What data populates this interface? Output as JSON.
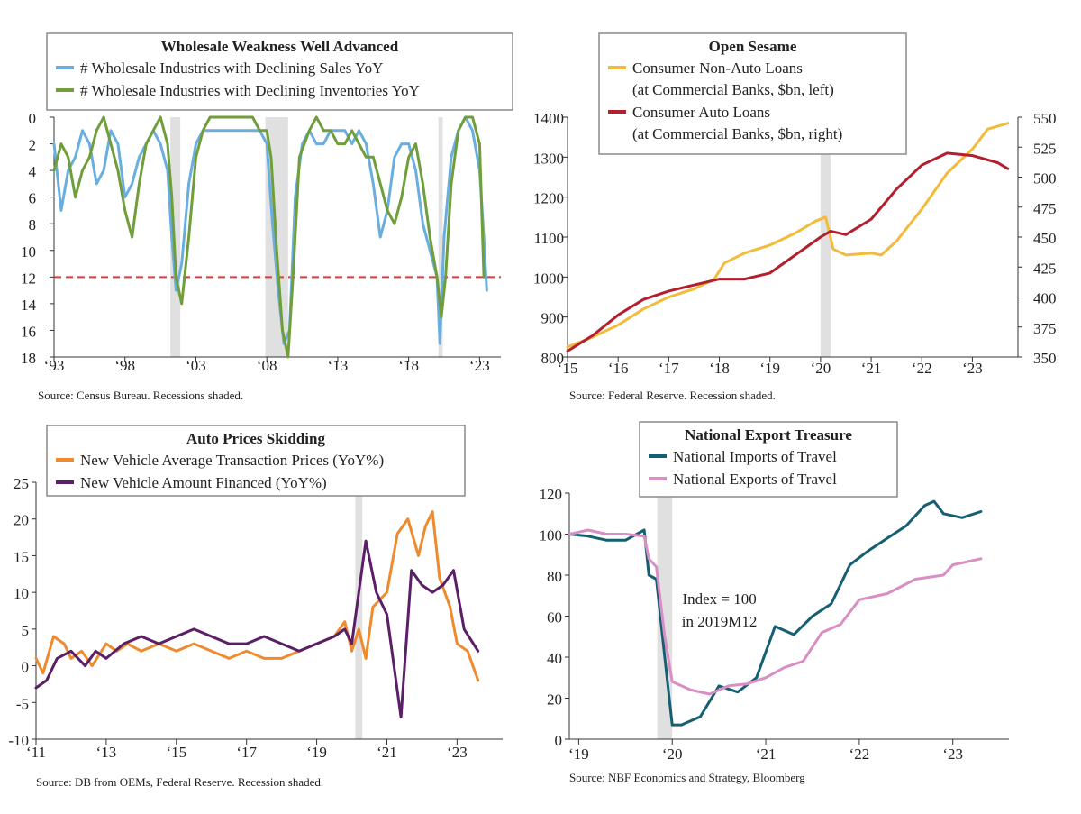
{
  "chart_data": [
    {
      "type": "line",
      "title": "Wholesale Weakness Well Advanced",
      "source": "Source: Census Bureau. Recessions shaded.",
      "y_inverted": true,
      "ylim": [
        0,
        18
      ],
      "y_ticks": [
        "0",
        "2",
        "4",
        "6",
        "8",
        "10",
        "12",
        "14",
        "16",
        "18"
      ],
      "x_range": [
        1993,
        2024.5
      ],
      "x_ticks": [
        {
          "v": 1993,
          "label": "‘93"
        },
        {
          "v": 1998,
          "label": "‘98"
        },
        {
          "v": 2003,
          "label": "‘03"
        },
        {
          "v": 2008,
          "label": "‘08"
        },
        {
          "v": 2013,
          "label": "‘13"
        },
        {
          "v": 2018,
          "label": "‘18"
        },
        {
          "v": 2023,
          "label": "‘23"
        }
      ],
      "recessions": [
        [
          2001.2,
          2001.9
        ],
        [
          2007.9,
          2009.5
        ],
        [
          2020.1,
          2020.4
        ]
      ],
      "reference_line": {
        "value": 12,
        "color": "#e23a3a"
      },
      "series": [
        {
          "name": "# Wholesale Industries with Declining Sales YoY",
          "color": "#6aaedf",
          "axis": "left",
          "x": [
            1993,
            1993.5,
            1994,
            1994.5,
            1995,
            1995.5,
            1996,
            1996.5,
            1997,
            1997.5,
            1998,
            1998.5,
            1999,
            1999.5,
            2000,
            2000.5,
            2001,
            2001.3,
            2001.6,
            2002,
            2002.5,
            2003,
            2003.5,
            2004,
            2005,
            2006,
            2007,
            2007.5,
            2008,
            2008.4,
            2008.8,
            2009.2,
            2009.6,
            2010,
            2010.5,
            2011,
            2011.5,
            2012,
            2012.5,
            2013,
            2013.5,
            2014,
            2014.5,
            2015,
            2015.5,
            2016,
            2016.5,
            2017,
            2017.5,
            2018,
            2018.5,
            2019,
            2019.5,
            2020,
            2020.2,
            2020.5,
            2021,
            2021.5,
            2022,
            2022.5,
            2023,
            2023.3,
            2023.5
          ],
          "values": [
            2,
            7,
            4,
            3,
            1,
            2,
            5,
            4,
            1,
            2,
            6,
            5,
            3,
            2,
            1,
            2,
            4,
            9,
            13,
            11,
            5,
            2,
            1,
            1,
            1,
            1,
            1,
            1,
            2,
            8,
            13,
            17,
            16,
            6,
            2,
            1,
            2,
            2,
            1,
            1,
            1,
            2,
            1,
            2,
            5,
            9,
            7,
            3,
            2,
            2,
            4,
            8,
            10,
            12,
            17,
            9,
            3,
            1,
            0,
            1,
            4,
            9,
            13
          ]
        },
        {
          "name": "# Wholesale Industries with Declining Inventories YoY",
          "color": "#6f9e3a",
          "axis": "left",
          "x": [
            1993,
            1993.5,
            1994,
            1994.5,
            1995,
            1995.5,
            1996,
            1996.5,
            1997,
            1997.5,
            1998,
            1998.5,
            1999,
            1999.5,
            2000,
            2000.5,
            2001,
            2001.3,
            2001.6,
            2002,
            2002.5,
            2003,
            2003.5,
            2004,
            2005,
            2006,
            2007,
            2007.5,
            2008,
            2008.3,
            2008.7,
            2009.1,
            2009.5,
            2009.9,
            2010.3,
            2011,
            2011.5,
            2012,
            2012.5,
            2013,
            2013.5,
            2014,
            2014.5,
            2015,
            2015.5,
            2016,
            2016.5,
            2017,
            2017.5,
            2018,
            2018.5,
            2019,
            2019.5,
            2020,
            2020.3,
            2020.6,
            2021,
            2021.5,
            2022,
            2022.5,
            2023,
            2023.3
          ],
          "values": [
            4,
            2,
            3,
            6,
            4,
            3,
            1,
            0,
            2,
            4,
            7,
            9,
            5,
            2,
            1,
            0,
            2,
            6,
            12,
            14,
            9,
            3,
            1,
            0,
            0,
            0,
            0,
            1,
            1,
            3,
            10,
            16,
            18,
            11,
            3,
            1,
            0,
            1,
            1,
            2,
            2,
            1,
            2,
            3,
            3,
            5,
            7,
            8,
            6,
            3,
            2,
            5,
            9,
            12,
            15,
            12,
            5,
            1,
            0,
            0,
            2,
            12
          ]
        }
      ]
    },
    {
      "type": "line",
      "title": "Open Sesame",
      "source": "Source: Federal Reserve. Recession shaded.",
      "ylim": [
        800,
        1400
      ],
      "y_ticks": [
        "800",
        "900",
        "1000",
        "1100",
        "1200",
        "1300",
        "1400"
      ],
      "y2lim": [
        350,
        550
      ],
      "y2_ticks": [
        "350",
        "375",
        "400",
        "425",
        "450",
        "475",
        "500",
        "525",
        "550"
      ],
      "x_range": [
        2015,
        2023.9
      ],
      "x_ticks": [
        {
          "v": 2015,
          "label": "‘15"
        },
        {
          "v": 2016,
          "label": "‘16"
        },
        {
          "v": 2017,
          "label": "‘17"
        },
        {
          "v": 2018,
          "label": "‘18"
        },
        {
          "v": 2019,
          "label": "‘19"
        },
        {
          "v": 2020,
          "label": "‘20"
        },
        {
          "v": 2021,
          "label": "‘21"
        },
        {
          "v": 2022,
          "label": "‘22"
        },
        {
          "v": 2023,
          "label": "‘23"
        }
      ],
      "recessions": [
        [
          2020.0,
          2020.2
        ]
      ],
      "series": [
        {
          "name": "Consumer Non-Auto Loans",
          "sub": "(at Commercial Banks, $bn, left)",
          "color": "#f2bb3b",
          "axis": "left",
          "x": [
            2015,
            2015.5,
            2016,
            2016.5,
            2017,
            2017.5,
            2017.9,
            2018.1,
            2018.5,
            2019,
            2019.5,
            2019.9,
            2020.1,
            2020.25,
            2020.5,
            2021,
            2021.2,
            2021.5,
            2022,
            2022.5,
            2023,
            2023.3,
            2023.7
          ],
          "values": [
            825,
            850,
            880,
            920,
            950,
            970,
            995,
            1035,
            1060,
            1080,
            1110,
            1140,
            1150,
            1070,
            1055,
            1060,
            1055,
            1090,
            1170,
            1260,
            1320,
            1370,
            1385
          ]
        },
        {
          "name": "Consumer Auto Loans",
          "sub": "(at Commercial Banks, $bn, right)",
          "color": "#b31f2e",
          "axis": "right",
          "x": [
            2015,
            2015.5,
            2016,
            2016.5,
            2017,
            2017.5,
            2018,
            2018.5,
            2019,
            2019.5,
            2020,
            2020.2,
            2020.5,
            2021,
            2021.5,
            2022,
            2022.5,
            2023,
            2023.5,
            2023.7
          ],
          "values": [
            355,
            368,
            385,
            398,
            405,
            410,
            415,
            415,
            420,
            435,
            450,
            455,
            452,
            465,
            490,
            510,
            520,
            518,
            512,
            507
          ]
        }
      ]
    },
    {
      "type": "line",
      "title": "Auto Prices Skidding",
      "source": "Source: DB from OEMs, Federal Reserve. Recession shaded.",
      "ylim": [
        -10,
        25
      ],
      "y_ticks": [
        "-10",
        "-5",
        "0",
        "5",
        "10",
        "15",
        "20",
        "25"
      ],
      "x_range": [
        2011,
        2024.3
      ],
      "x_ticks": [
        {
          "v": 2011,
          "label": "‘11"
        },
        {
          "v": 2013,
          "label": "‘13"
        },
        {
          "v": 2015,
          "label": "‘15"
        },
        {
          "v": 2017,
          "label": "‘17"
        },
        {
          "v": 2019,
          "label": "‘19"
        },
        {
          "v": 2021,
          "label": "‘21"
        },
        {
          "v": 2023,
          "label": "‘23"
        }
      ],
      "recessions": [
        [
          2020.1,
          2020.3
        ]
      ],
      "series": [
        {
          "name": "New Vehicle Average Transaction Prices (YoY%)",
          "color": "#ef8a2e",
          "axis": "left",
          "x": [
            2011,
            2011.2,
            2011.5,
            2011.8,
            2012,
            2012.3,
            2012.6,
            2013,
            2013.3,
            2013.6,
            2014,
            2014.5,
            2015,
            2015.5,
            2016,
            2016.5,
            2017,
            2017.5,
            2018,
            2018.5,
            2019,
            2019.5,
            2019.8,
            2020,
            2020.2,
            2020.4,
            2020.6,
            2021,
            2021.3,
            2021.6,
            2021.9,
            2022.1,
            2022.3,
            2022.5,
            2022.8,
            2023,
            2023.3,
            2023.6
          ],
          "values": [
            1,
            -1,
            4,
            3,
            1,
            2,
            0,
            3,
            2,
            3,
            2,
            3,
            2,
            3,
            2,
            1,
            2,
            1,
            1,
            2,
            3,
            4,
            6,
            2,
            5,
            1,
            8,
            10,
            18,
            20,
            15,
            19,
            21,
            12,
            8,
            3,
            2,
            -2
          ]
        },
        {
          "name": "New Vehicle Amount Financed (YoY%)",
          "color": "#5a1f66",
          "axis": "left",
          "x": [
            2011,
            2011.3,
            2011.6,
            2012,
            2012.4,
            2012.7,
            2013,
            2013.5,
            2014,
            2014.5,
            2015,
            2015.5,
            2016,
            2016.5,
            2017,
            2017.5,
            2018,
            2018.5,
            2019,
            2019.5,
            2019.8,
            2020,
            2020.2,
            2020.4,
            2020.7,
            2021,
            2021.4,
            2021.7,
            2022,
            2022.3,
            2022.6,
            2022.9,
            2023.2,
            2023.6
          ],
          "values": [
            -3,
            -2,
            1,
            2,
            0,
            2,
            1,
            3,
            4,
            3,
            4,
            5,
            4,
            3,
            3,
            4,
            3,
            2,
            3,
            4,
            5,
            3,
            10,
            17,
            10,
            7,
            -7,
            13,
            11,
            10,
            11,
            13,
            5,
            2
          ]
        }
      ]
    },
    {
      "type": "line",
      "title": "National Export Treasure",
      "source": "Source: NBF Economics and Strategy, Bloomberg",
      "annotation": [
        "Index = 100",
        "in 2019M12"
      ],
      "ylim": [
        0,
        120
      ],
      "y_ticks": [
        "0",
        "20",
        "40",
        "60",
        "80",
        "100",
        "120"
      ],
      "x_range": [
        2018.9,
        2023.6
      ],
      "x_ticks": [
        {
          "v": 2019,
          "label": "‘19"
        },
        {
          "v": 2020,
          "label": "‘20"
        },
        {
          "v": 2021,
          "label": "‘21"
        },
        {
          "v": 2022,
          "label": "‘22"
        },
        {
          "v": 2023,
          "label": "‘23"
        }
      ],
      "recessions": [
        [
          2019.84,
          2020.0
        ]
      ],
      "series": [
        {
          "name": "National Imports of Travel",
          "color": "#155f72",
          "axis": "left",
          "x": [
            2018.9,
            2019.1,
            2019.3,
            2019.5,
            2019.7,
            2019.75,
            2019.83,
            2019.92,
            2020.0,
            2020.1,
            2020.3,
            2020.5,
            2020.7,
            2020.9,
            2021.1,
            2021.3,
            2021.5,
            2021.7,
            2021.9,
            2022.1,
            2022.3,
            2022.5,
            2022.7,
            2022.8,
            2022.9,
            2023.1,
            2023.3
          ],
          "values": [
            100,
            99,
            97,
            97,
            102,
            80,
            78,
            40,
            7,
            7,
            11,
            26,
            23,
            30,
            55,
            51,
            60,
            66,
            85,
            92,
            98,
            104,
            114,
            116,
            110,
            108,
            111
          ]
        },
        {
          "name": "National Exports of Travel",
          "color": "#d98ec4",
          "axis": "left",
          "x": [
            2018.9,
            2019.1,
            2019.3,
            2019.5,
            2019.7,
            2019.75,
            2019.83,
            2019.92,
            2020.0,
            2020.2,
            2020.4,
            2020.6,
            2020.8,
            2021.0,
            2021.2,
            2021.4,
            2021.6,
            2021.8,
            2022.0,
            2022.3,
            2022.6,
            2022.9,
            2023.0,
            2023.3
          ],
          "values": [
            100,
            102,
            100,
            100,
            99,
            88,
            84,
            50,
            28,
            24,
            22,
            26,
            27,
            30,
            35,
            38,
            52,
            56,
            68,
            71,
            78,
            80,
            85,
            88
          ]
        }
      ]
    }
  ]
}
